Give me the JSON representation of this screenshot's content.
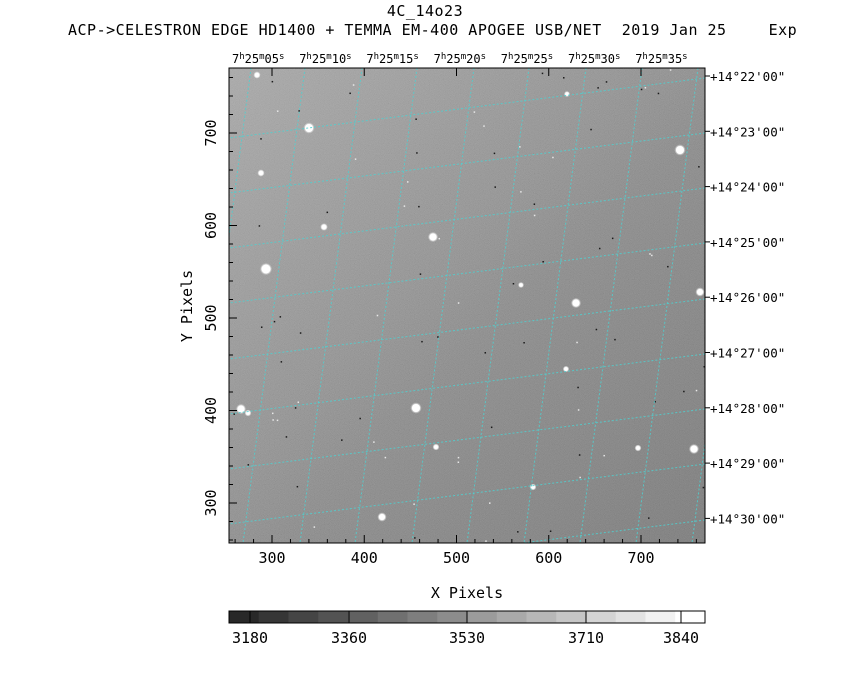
{
  "title": "4C_14o23",
  "subtitle": {
    "instrument": "ACP->CELESTRON EDGE HD1400 + TEMMA EM-400 APOGEE USB/NET",
    "date": "2019 Jan 25",
    "exposure_truncated": "Exp"
  },
  "axes": {
    "xlabel": "X Pixels",
    "ylabel": "Y Pixels",
    "x_ticks": [
      300,
      400,
      500,
      600,
      700
    ],
    "y_ticks": [
      300,
      400,
      500,
      600,
      700
    ],
    "x_range": [
      258,
      770
    ],
    "y_range": [
      260,
      768
    ]
  },
  "ra_labels": [
    "7h25m05s",
    "7h25m10s",
    "7h25m15s",
    "7h25m20s",
    "7h25m25s",
    "7h25m30s",
    "7h25m35s"
  ],
  "dec_labels": [
    "+14°22'00\"",
    "+14°23'00\"",
    "+14°24'00\"",
    "+14°25'00\"",
    "+14°26'00\"",
    "+14°27'00\"",
    "+14°28'00\"",
    "+14°29'00\"",
    "+14°30'00\""
  ],
  "colorbar": {
    "labels": [
      "3180",
      "3360",
      "3530",
      "3710",
      "3840"
    ],
    "segments": 16
  },
  "colors": {
    "grid": "#4fd0d0",
    "frame": "#000000"
  }
}
